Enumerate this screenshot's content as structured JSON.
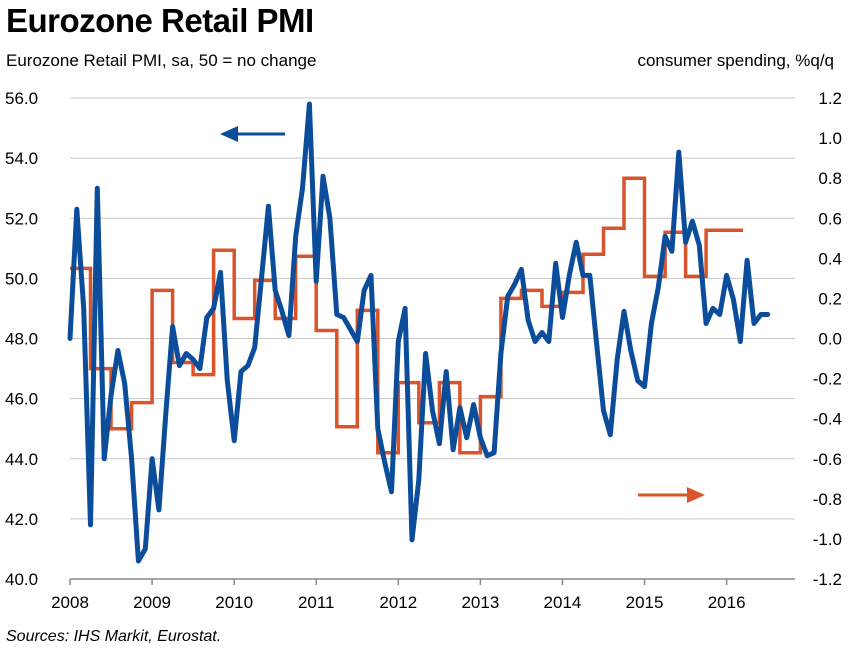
{
  "chart_data": {
    "type": "line",
    "title": "Eurozone Retail PMI",
    "subtitle": "Eurozone Retail PMI, sa, 50 = no change",
    "right_axis_label": "consumer spending, %q/q",
    "source": "Sources: IHS Markit, Eurostat.",
    "x_range": [
      2008.0,
      2016.833
    ],
    "x_ticks": [
      "2008",
      "2009",
      "2010",
      "2011",
      "2012",
      "2013",
      "2014",
      "2015",
      "2016"
    ],
    "y_left": {
      "range": [
        40.0,
        56.0
      ],
      "ticks": [
        "40.0",
        "42.0",
        "44.0",
        "46.0",
        "48.0",
        "50.0",
        "52.0",
        "54.0",
        "56.0"
      ]
    },
    "y_right": {
      "range": [
        -1.2,
        1.2
      ],
      "ticks": [
        "-1.2",
        "-1.0",
        "-0.8",
        "-0.6",
        "-0.4",
        "-0.2",
        "0.0",
        "0.2",
        "0.4",
        "0.6",
        "0.8",
        "1.0",
        "1.2"
      ]
    },
    "grid": true,
    "annotations": [
      {
        "type": "arrow",
        "direction": "left",
        "meaning": "left axis",
        "color": "#0b4d9b"
      },
      {
        "type": "arrow",
        "direction": "right",
        "meaning": "right axis",
        "color": "#d9532b"
      }
    ],
    "series": [
      {
        "axis": "left",
        "color": "#0b4d9b",
        "x": [
          2008.0,
          2008.083,
          2008.167,
          2008.25,
          2008.333,
          2008.417,
          2008.5,
          2008.583,
          2008.667,
          2008.75,
          2008.833,
          2008.917,
          2009.0,
          2009.083,
          2009.167,
          2009.25,
          2009.333,
          2009.417,
          2009.5,
          2009.583,
          2009.667,
          2009.75,
          2009.833,
          2009.917,
          2010.0,
          2010.083,
          2010.167,
          2010.25,
          2010.333,
          2010.417,
          2010.5,
          2010.583,
          2010.667,
          2010.75,
          2010.833,
          2010.917,
          2011.0,
          2011.083,
          2011.167,
          2011.25,
          2011.333,
          2011.417,
          2011.5,
          2011.583,
          2011.667,
          2011.75,
          2011.833,
          2011.917,
          2012.0,
          2012.083,
          2012.167,
          2012.25,
          2012.333,
          2012.417,
          2012.5,
          2012.583,
          2012.667,
          2012.75,
          2012.833,
          2012.917,
          2013.0,
          2013.083,
          2013.167,
          2013.25,
          2013.333,
          2013.417,
          2013.5,
          2013.583,
          2013.667,
          2013.75,
          2013.833,
          2013.917,
          2014.0,
          2014.083,
          2014.167,
          2014.25,
          2014.333,
          2014.417,
          2014.5,
          2014.583,
          2014.667,
          2014.75,
          2014.833,
          2014.917,
          2015.0,
          2015.083,
          2015.167,
          2015.25,
          2015.333,
          2015.417,
          2015.5,
          2015.583,
          2015.667,
          2015.75,
          2015.833,
          2015.917,
          2016.0,
          2016.083,
          2016.167,
          2016.25,
          2016.333,
          2016.417,
          2016.5
        ],
        "values": [
          48.0,
          52.3,
          49.0,
          41.8,
          53.0,
          44.0,
          46.1,
          47.6,
          46.5,
          44.0,
          40.6,
          41.0,
          44.0,
          42.3,
          45.5,
          48.4,
          47.1,
          47.5,
          47.3,
          47.0,
          48.7,
          49.0,
          50.2,
          46.6,
          44.6,
          46.9,
          47.1,
          47.7,
          50.0,
          52.4,
          49.6,
          48.9,
          48.1,
          51.4,
          53.0,
          55.8,
          49.9,
          53.4,
          52.0,
          48.8,
          48.7,
          48.3,
          47.9,
          49.6,
          50.1,
          45.0,
          43.9,
          42.9,
          47.9,
          49.0,
          41.3,
          43.3,
          47.5,
          45.6,
          44.5,
          46.9,
          44.3,
          45.7,
          44.7,
          45.8,
          44.7,
          44.1,
          44.2,
          47.5,
          49.4,
          49.8,
          50.3,
          48.6,
          47.9,
          48.2,
          47.9,
          50.5,
          48.7,
          50.1,
          51.2,
          50.1,
          50.1,
          47.8,
          45.6,
          44.8,
          47.3,
          48.9,
          47.6,
          46.6,
          46.4,
          48.5,
          49.7,
          51.4,
          50.9,
          54.2,
          51.2,
          51.9,
          51.1,
          48.5,
          49.0,
          48.8,
          50.1,
          49.3,
          47.9,
          50.6,
          48.5,
          48.8,
          48.8
        ]
      },
      {
        "axis": "right",
        "color": "#d9532b",
        "x_quarters": [
          2008.0,
          2008.25,
          2008.5,
          2008.75,
          2009.0,
          2009.25,
          2009.5,
          2009.75,
          2010.0,
          2010.25,
          2010.5,
          2010.75,
          2011.0,
          2011.25,
          2011.5,
          2011.75,
          2012.0,
          2012.25,
          2012.5,
          2012.75,
          2013.0,
          2013.25,
          2013.5,
          2013.75,
          2014.0,
          2014.25,
          2014.5,
          2014.75,
          2015.0,
          2015.25,
          2015.5,
          2015.75,
          2016.0
        ],
        "x_end": 2016.2,
        "values": [
          0.35,
          -0.15,
          -0.45,
          -0.32,
          0.24,
          -0.12,
          -0.18,
          0.44,
          0.1,
          0.29,
          0.1,
          0.41,
          0.04,
          -0.44,
          0.14,
          -0.57,
          -0.22,
          -0.42,
          -0.22,
          -0.57,
          -0.29,
          0.2,
          0.24,
          0.16,
          0.23,
          0.42,
          0.55,
          0.8,
          0.31,
          0.53,
          0.31,
          0.54,
          0.54
        ]
      }
    ]
  }
}
